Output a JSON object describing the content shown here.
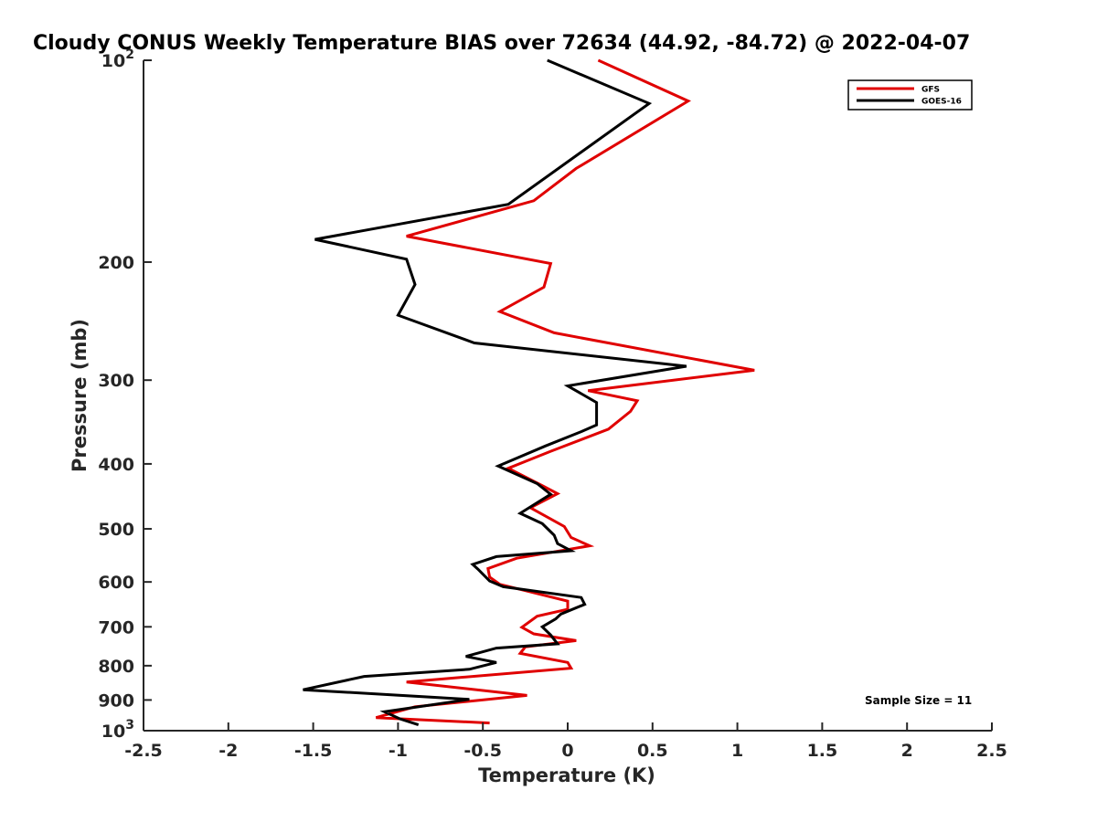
{
  "chart_data": {
    "type": "line",
    "title": "Cloudy CONUS Weekly Temperature BIAS over 72634 (44.92, -84.72) @ 2022-04-07",
    "xlabel": "Temperature (K)",
    "ylabel": "Pressure (mb)",
    "xlim": [
      -2.5,
      2.5
    ],
    "ylim": [
      100,
      1000
    ],
    "y_scale": "log",
    "y_reversed": true,
    "grid": false,
    "legend_position": "top-right",
    "x_ticks": [
      -2.5,
      -2,
      -1.5,
      -1,
      -0.5,
      0,
      0.5,
      1,
      1.5,
      2,
      2.5
    ],
    "x_tick_labels": [
      "-2.5",
      "-2",
      "-1.5",
      "-1",
      "-0.5",
      "0",
      "0.5",
      "1",
      "1.5",
      "2",
      "2.5"
    ],
    "y_ticks": [
      100,
      200,
      300,
      400,
      500,
      600,
      700,
      800,
      900,
      1000
    ],
    "y_tick_labels": [
      {
        "base": "10",
        "exp": "2"
      },
      {
        "base": "200"
      },
      {
        "base": "300"
      },
      {
        "base": "400"
      },
      {
        "base": "500"
      },
      {
        "base": "600"
      },
      {
        "base": "700"
      },
      {
        "base": "800"
      },
      {
        "base": "900"
      },
      {
        "base": "10",
        "exp": "3"
      }
    ],
    "annotation": "Sample Size = 11",
    "series": [
      {
        "name": "GFS",
        "color": "#e00000",
        "x": [
          0.18,
          0.71,
          0.05,
          -0.2,
          -0.95,
          -0.1,
          -0.14,
          -0.4,
          -0.08,
          1.1,
          0.12,
          0.41,
          0.37,
          0.24,
          -0.1,
          -0.35,
          -0.15,
          -0.06,
          -0.22,
          -0.02,
          0.02,
          0.13,
          -0.3,
          -0.47,
          -0.46,
          -0.4,
          0.0,
          0.0,
          -0.18,
          -0.27,
          -0.2,
          0.05,
          -0.25,
          -0.28,
          0.0,
          0.02,
          -0.95,
          -0.24,
          -0.9,
          -1.13,
          -0.46
        ],
        "y": [
          100,
          115,
          145,
          162,
          183,
          201,
          218,
          237,
          255,
          290,
          311,
          322,
          334,
          355,
          383,
          406,
          431,
          443,
          465,
          496,
          515,
          530,
          553,
          573,
          590,
          605,
          641,
          659,
          675,
          701,
          717,
          734,
          750,
          767,
          791,
          807,
          846,
          886,
          921,
          956,
          974
        ]
      },
      {
        "name": "GOES-16",
        "color": "#000000",
        "x": [
          -0.12,
          0.48,
          -0.35,
          -1.49,
          -0.95,
          -0.9,
          -1.0,
          -0.55,
          0.7,
          0.0,
          0.17,
          0.17,
          0.08,
          -0.13,
          -0.41,
          -0.18,
          -0.1,
          -0.28,
          -0.15,
          -0.08,
          -0.06,
          0.02,
          -0.42,
          -0.56,
          -0.53,
          -0.46,
          -0.38,
          0.08,
          0.1,
          -0.04,
          -0.07,
          -0.15,
          -0.1,
          -0.06,
          -0.42,
          -0.6,
          -0.42,
          -0.58,
          -1.2,
          -1.56,
          -0.58,
          -1.08,
          -0.99,
          -0.88
        ],
        "y": [
          100,
          116,
          164,
          185,
          198,
          216,
          240,
          264,
          286,
          306,
          324,
          350,
          358,
          376,
          403,
          428,
          444,
          474,
          491,
          511,
          526,
          539,
          550,
          565,
          574,
          598,
          610,
          633,
          648,
          670,
          681,
          700,
          720,
          742,
          753,
          775,
          791,
          810,
          830,
          869,
          898,
          937,
          960,
          980
        ]
      }
    ]
  }
}
